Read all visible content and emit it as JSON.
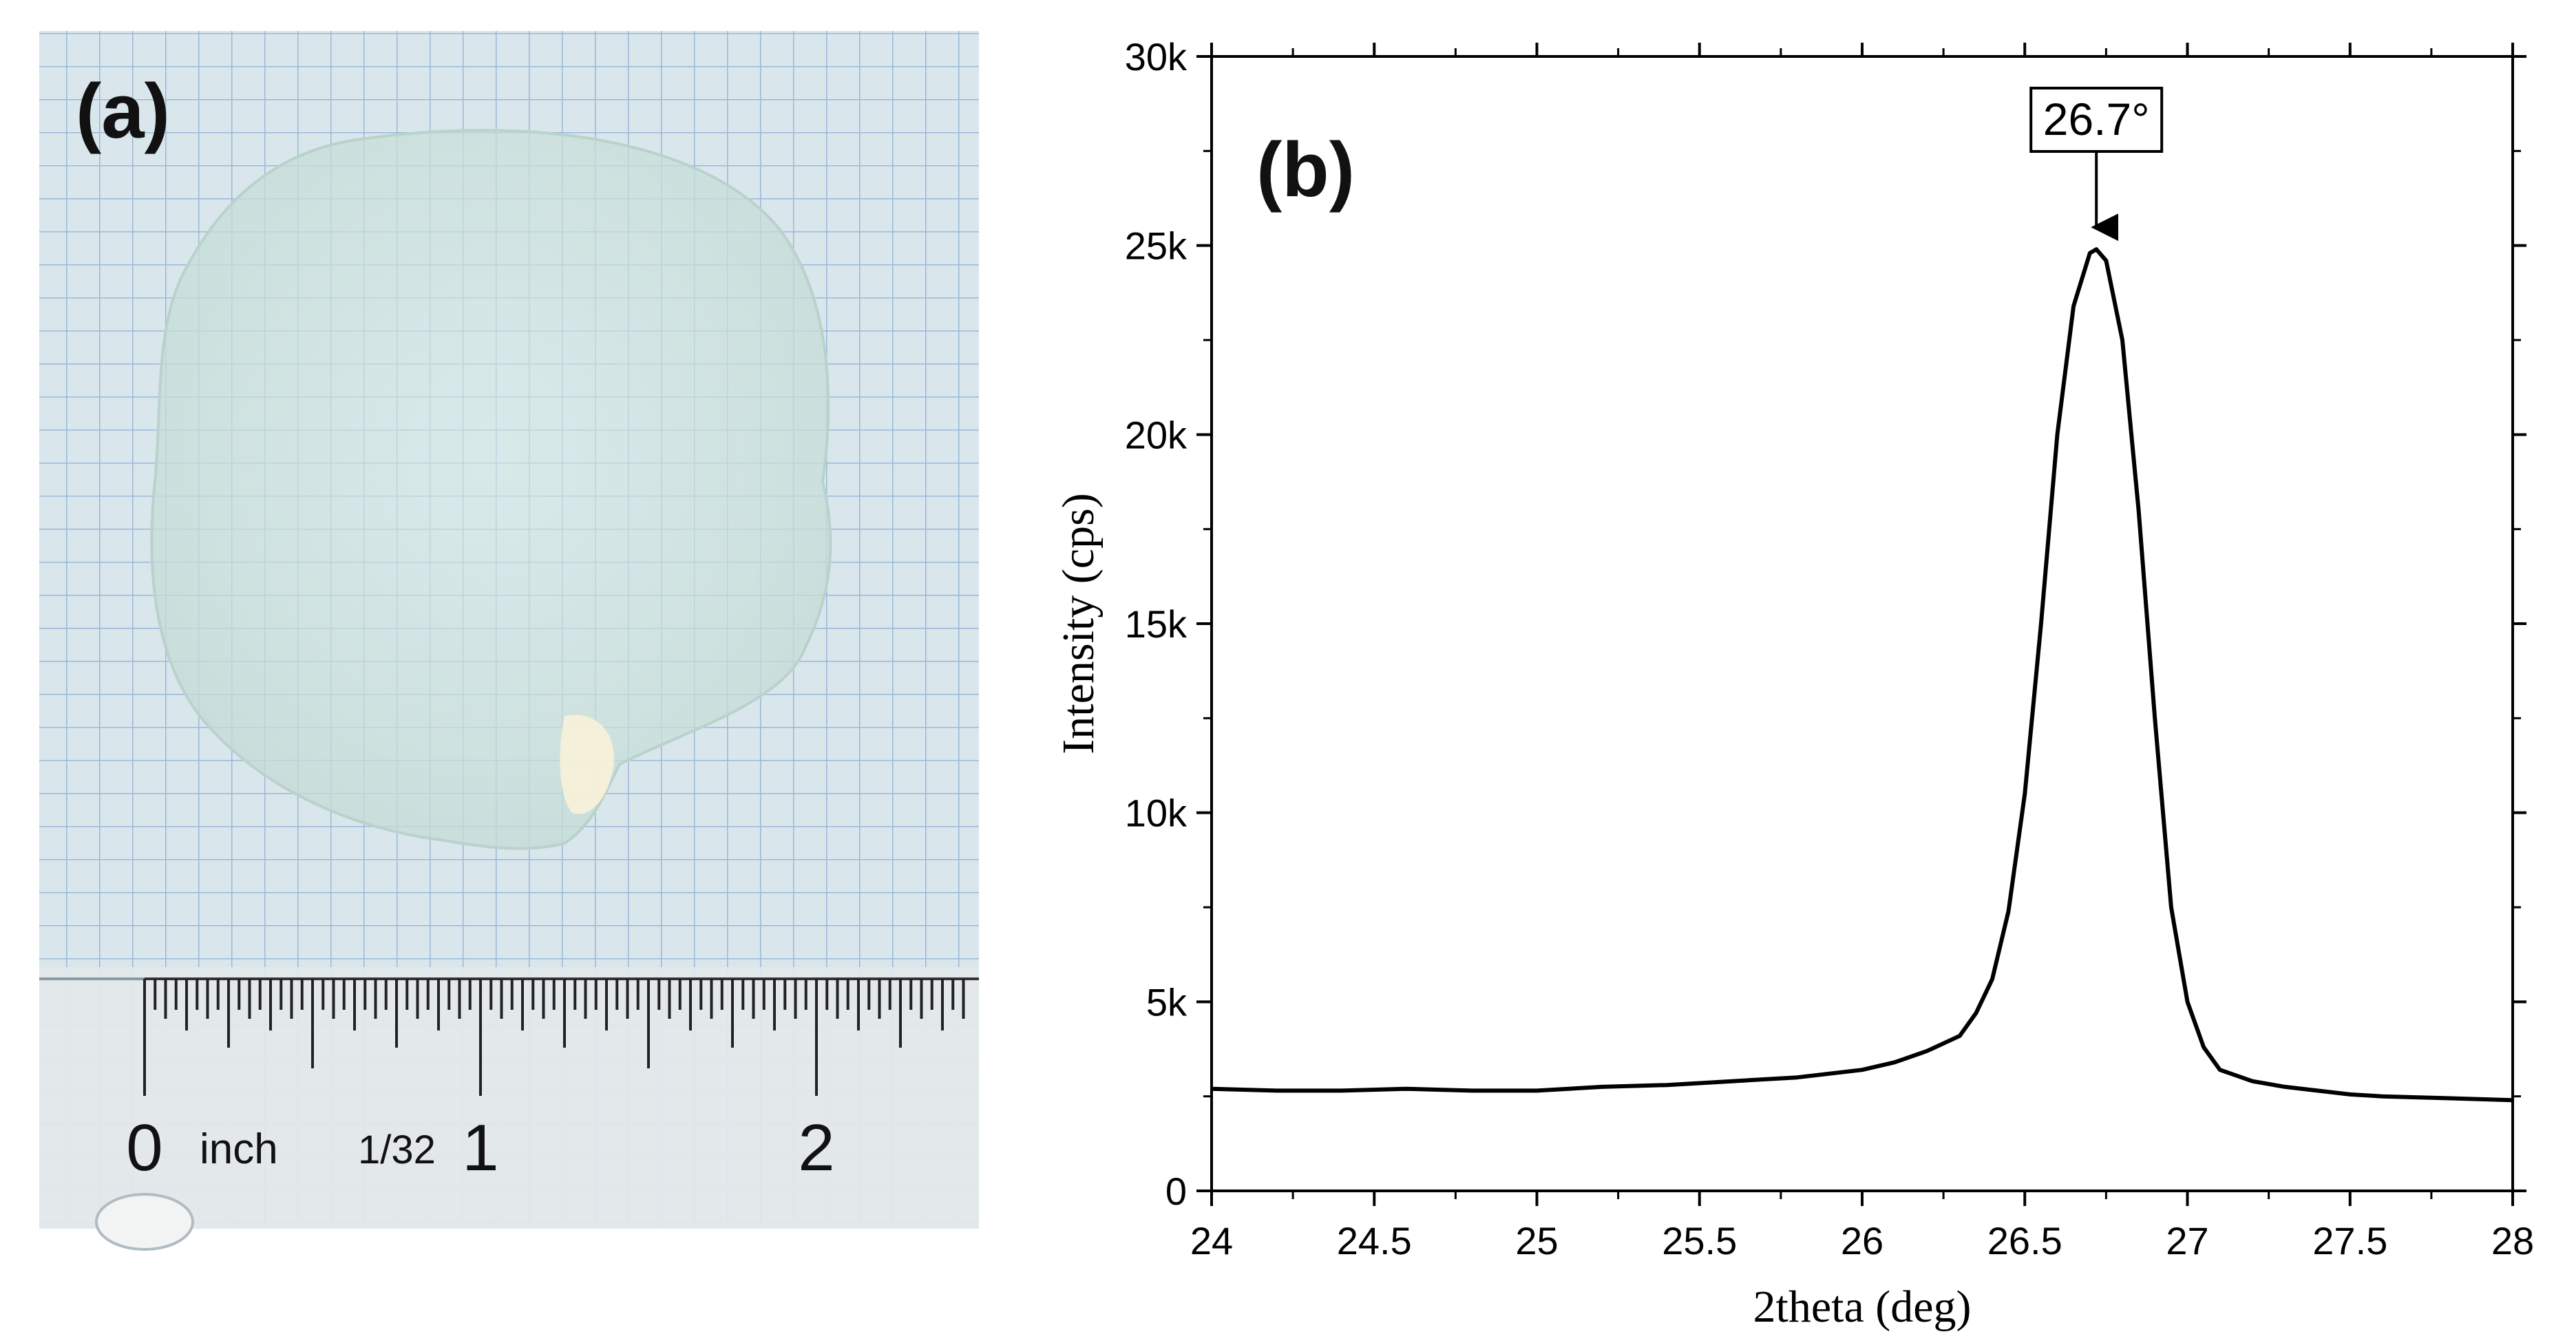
{
  "panels": {
    "a": {
      "label": "(a)",
      "ruler": {
        "numbers": [
          "0",
          "1",
          "2"
        ],
        "unit_label": "inch",
        "fraction_label": "1/32"
      }
    },
    "b": {
      "label": "(b)"
    }
  },
  "colors": {
    "line": "#000000",
    "paper_grid": "#9ab8d8",
    "paper_bg": "#d9e6ec",
    "film": "#cfe4e0"
  },
  "chart_data": {
    "type": "line",
    "title": "",
    "xlabel": "2theta (deg)",
    "ylabel": "Intensity (cps)",
    "xlim": [
      24,
      28
    ],
    "ylim": [
      0,
      30000
    ],
    "xticks": [
      "24",
      "24.5",
      "25",
      "25.5",
      "26",
      "26.5",
      "27",
      "27.5",
      "28"
    ],
    "yticks": [
      "0",
      "5k",
      "10k",
      "15k",
      "20k",
      "25k",
      "30k"
    ],
    "grid": false,
    "annotation": {
      "text": "26.7°",
      "x": 26.72,
      "y": 24900
    },
    "series": [
      {
        "x": [
          24.0,
          24.2,
          24.4,
          24.6,
          24.8,
          25.0,
          25.2,
          25.4,
          25.6,
          25.8,
          26.0,
          26.1,
          26.2,
          26.3,
          26.35,
          26.4,
          26.45,
          26.5,
          26.55,
          26.6,
          26.65,
          26.7,
          26.72,
          26.75,
          26.8,
          26.85,
          26.9,
          26.95,
          27.0,
          27.05,
          27.1,
          27.2,
          27.3,
          27.4,
          27.5,
          27.6,
          27.8,
          28.0
        ],
        "y": [
          2700,
          2650,
          2650,
          2700,
          2650,
          2650,
          2750,
          2800,
          2900,
          3000,
          3200,
          3400,
          3700,
          4100,
          4700,
          5600,
          7400,
          10500,
          15000,
          20000,
          23400,
          24800,
          24900,
          24600,
          22500,
          18000,
          12500,
          7500,
          5000,
          3800,
          3200,
          2900,
          2750,
          2650,
          2550,
          2500,
          2450,
          2400
        ]
      }
    ]
  }
}
